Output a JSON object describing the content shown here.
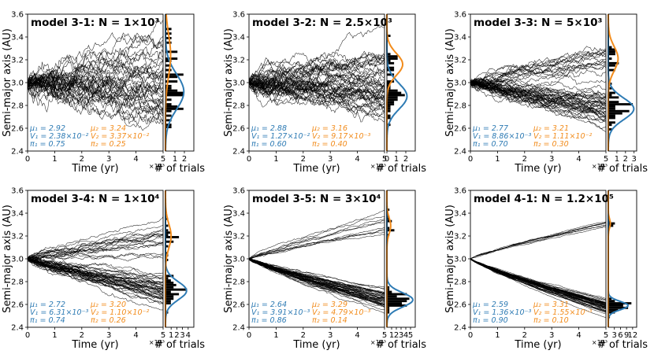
{
  "colors": {
    "blue": "#2e7bb4",
    "orange": "#f28c1c",
    "line": "#000000"
  },
  "axes_text": {
    "ylabel": "Semi-major axis (AU)",
    "xlabel": "Time (yr)",
    "hist_xlabel": "# of trials",
    "x_multiplier": "×10³"
  },
  "chart_data": [
    {
      "type": "line",
      "panel": "model 3-1",
      "title": "model 3-1: N = 1×10³",
      "xlim": [
        0,
        5
      ],
      "ylim": [
        2.4,
        3.6
      ],
      "xticks": [
        0,
        1,
        2,
        3,
        4,
        5
      ],
      "yticks": [
        "2.4",
        "2.6",
        "2.8",
        "3.0",
        "3.2",
        "3.4",
        "3.6"
      ],
      "n_trajectories": 40,
      "spread": 0.45,
      "hist": {
        "xlim": [
          0,
          3
        ],
        "xticks": [
          1,
          2
        ],
        "max_count": 2
      },
      "fit": {
        "mu1": 2.92,
        "mu2": 3.24,
        "V1": 0.0238,
        "V2": 0.0337,
        "pi1": 0.75,
        "pi2": 0.25
      },
      "stats": {
        "mu1": "μ₁ = 2.92",
        "mu2": "μ₂ = 3.24",
        "V1": "V₁ = 2.38×10⁻²",
        "V2": "V₂ = 3.37×10⁻²",
        "pi1": "π₁ = 0.75",
        "pi2": "π₂ = 0.25"
      }
    },
    {
      "type": "line",
      "panel": "model 3-2",
      "title": "model 3-2: N = 2.5×10³",
      "xlim": [
        0,
        5
      ],
      "ylim": [
        2.4,
        3.6
      ],
      "xticks": [
        0,
        1,
        2,
        3,
        4,
        5
      ],
      "yticks": [
        "2.4",
        "2.6",
        "2.8",
        "3.0",
        "3.2",
        "3.4",
        "3.6"
      ],
      "n_trajectories": 50,
      "spread": 0.32,
      "hist": {
        "xlim": [
          0,
          3
        ],
        "xticks": [
          0,
          1,
          2
        ],
        "max_count": 2
      },
      "fit": {
        "mu1": 2.88,
        "mu2": 3.16,
        "V1": 0.0127,
        "V2": 0.00917,
        "pi1": 0.6,
        "pi2": 0.4
      },
      "stats": {
        "mu1": "μ₁ = 2.88",
        "mu2": "μ₂ = 3.16",
        "V1": "V₁ = 1.27×10⁻²",
        "V2": "V₂ = 9.17×10⁻³",
        "pi1": "π₁ = 0.60",
        "pi2": "π₂ = 0.40"
      }
    },
    {
      "type": "line",
      "panel": "model 3-3",
      "title": "model 3-3: N = 5×10³",
      "xlim": [
        0,
        5
      ],
      "ylim": [
        2.4,
        3.6
      ],
      "xticks": [
        0,
        1,
        2,
        3,
        4,
        5
      ],
      "yticks": [
        "2.4",
        "2.6",
        "2.8",
        "3.0",
        "3.2",
        "3.4",
        "3.6"
      ],
      "n_trajectories": 55,
      "spread": 0.2,
      "hist": {
        "xlim": [
          0,
          3.3
        ],
        "xticks": [
          1,
          2,
          3
        ],
        "max_count": 3
      },
      "fit": {
        "mu1": 2.77,
        "mu2": 3.21,
        "V1": 0.00886,
        "V2": 0.0111,
        "pi1": 0.7,
        "pi2": 0.3
      },
      "stats": {
        "mu1": "μ₁ = 2.77",
        "mu2": "μ₂ = 3.21",
        "V1": "V₁ = 8.86×10⁻³",
        "V2": "V₂ = 1.11×10⁻²",
        "pi1": "π₁ = 0.70",
        "pi2": "π₂ = 0.30"
      }
    },
    {
      "type": "line",
      "panel": "model 3-4",
      "title": "model 3-4: N = 1×10⁴",
      "xlim": [
        0,
        5
      ],
      "ylim": [
        2.4,
        3.6
      ],
      "xticks": [
        0,
        1,
        2,
        3,
        4,
        5
      ],
      "yticks": [
        "2.4",
        "2.6",
        "2.8",
        "3.0",
        "3.2",
        "3.4",
        "3.6"
      ],
      "n_trajectories": 60,
      "spread": 0.12,
      "hist": {
        "xlim": [
          0,
          5
        ],
        "xticks": [
          1,
          2,
          3,
          4
        ],
        "max_count": 4
      },
      "fit": {
        "mu1": 2.72,
        "mu2": 3.2,
        "V1": 0.00631,
        "V2": 0.011,
        "pi1": 0.74,
        "pi2": 0.26
      },
      "stats": {
        "mu1": "μ₁ = 2.72",
        "mu2": "μ₂ = 3.20",
        "V1": "V₁ = 6.31×10⁻³",
        "V2": "V₂ = 1.10×10⁻²",
        "pi1": "π₁ = 0.74",
        "pi2": "π₂ = 0.26"
      }
    },
    {
      "type": "line",
      "panel": "model 3-5",
      "title": "model 3-5: N = 3×10⁴",
      "xlim": [
        0,
        5
      ],
      "ylim": [
        2.4,
        3.6
      ],
      "xticks": [
        0,
        1,
        2,
        3,
        4,
        5
      ],
      "yticks": [
        "2.4",
        "2.6",
        "2.8",
        "3.0",
        "3.2",
        "3.4",
        "3.6"
      ],
      "n_trajectories": 60,
      "spread": 0.06,
      "hist": {
        "xlim": [
          0,
          6
        ],
        "xticks": [
          1,
          2,
          3,
          4,
          5
        ],
        "max_count": 5
      },
      "fit": {
        "mu1": 2.64,
        "mu2": 3.29,
        "V1": 0.00391,
        "V2": 0.00479,
        "pi1": 0.86,
        "pi2": 0.14
      },
      "stats": {
        "mu1": "μ₁ = 2.64",
        "mu2": "μ₂ = 3.29",
        "V1": "V₁ = 3.91×10⁻³",
        "V2": "V₂ = 4.79×10⁻³",
        "pi1": "π₁ = 0.86",
        "pi2": "π₂ = 0.14"
      }
    },
    {
      "type": "line",
      "panel": "model 4-1",
      "title": "model 4-1: N = 1.2×10⁵",
      "xlim": [
        0,
        5
      ],
      "ylim": [
        2.4,
        3.6
      ],
      "xticks": [
        0,
        1,
        2,
        3,
        4,
        5
      ],
      "yticks": [
        "2.4",
        "2.6",
        "2.8",
        "3.0",
        "3.2",
        "3.4",
        "3.6"
      ],
      "n_trajectories": 60,
      "spread": 0.03,
      "hist": {
        "xlim": [
          0,
          14
        ],
        "xticks": [
          3,
          6,
          9,
          12
        ],
        "max_count": 12
      },
      "fit": {
        "mu1": 2.59,
        "mu2": 3.31,
        "V1": 0.00136,
        "V2": 0.00155,
        "pi1": 0.9,
        "pi2": 0.1
      },
      "stats": {
        "mu1": "μ₁ = 2.59",
        "mu2": "μ₂ = 3.31",
        "V1": "V₁ = 1.36×10⁻³",
        "V2": "V₂ = 1.55×10⁻³",
        "pi1": "π₁ = 0.90",
        "pi2": "π₂ = 0.10"
      }
    }
  ]
}
